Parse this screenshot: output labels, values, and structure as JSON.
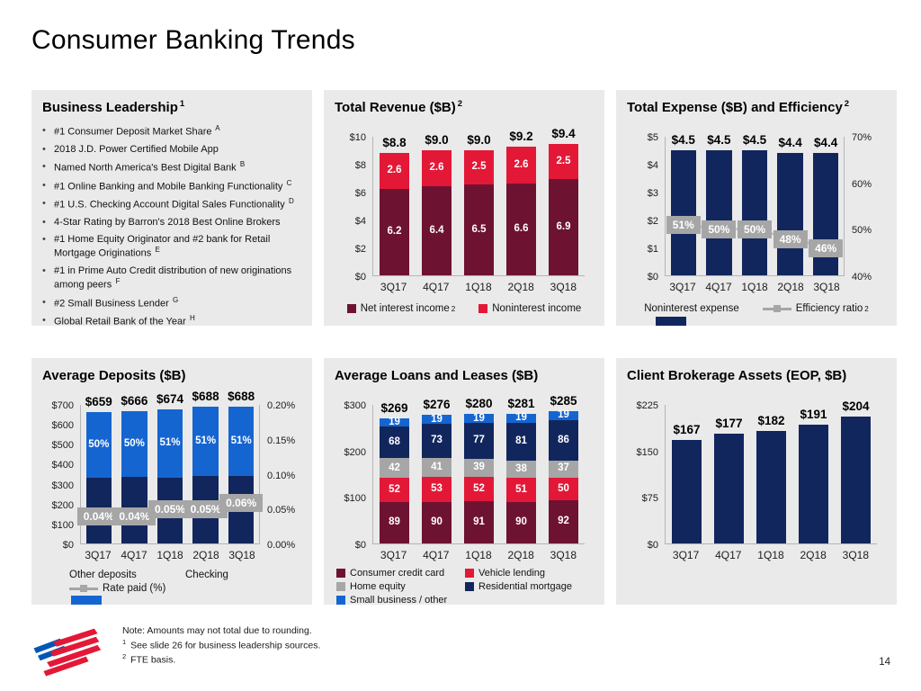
{
  "slide": {
    "title": "Consumer Banking Trends",
    "page_number": "14",
    "footnotes": [
      {
        "sup": "",
        "text": "Note: Amounts may not total due to rounding."
      },
      {
        "sup": "1",
        "text": "See slide 26 for business leadership sources."
      },
      {
        "sup": "2",
        "text": "FTE basis."
      }
    ]
  },
  "colors": {
    "maroon": "#6E1232",
    "red": "#E31837",
    "navy": "#12265E",
    "blue": "#1565D0",
    "gray": "#A6A6A6",
    "line_gray": "#BFBFBF",
    "panel_bg": "#EAEAEA",
    "logo_red": "#E31837",
    "logo_blue": "#0057B8"
  },
  "panels": {
    "business_leadership": {
      "title": "Business Leadership",
      "title_sup": "1",
      "bullets": [
        {
          "text": "#1 Consumer Deposit Market Share",
          "sup": "A"
        },
        {
          "text": "2018 J.D. Power Certified Mobile App",
          "sup": ""
        },
        {
          "text": "Named North America's Best Digital Bank",
          "sup": "B"
        },
        {
          "text": "#1 Online Banking and Mobile Banking Functionality",
          "sup": "C"
        },
        {
          "text": "#1 U.S. Checking Account Digital Sales Functionality",
          "sup": "D"
        },
        {
          "text": "4-Star Rating by Barron's 2018 Best Online Brokers",
          "sup": ""
        },
        {
          "text": "#1 Home Equity Originator and #2 bank for Retail Mortgage Originations",
          "sup": "E"
        },
        {
          "text": "#1 in Prime Auto Credit distribution of new originations among peers",
          "sup": "F"
        },
        {
          "text": "#2 Small Business Lender",
          "sup": "G"
        },
        {
          "text": "Global Retail Bank of the Year",
          "sup": "H"
        }
      ]
    }
  },
  "chart_data": [
    {
      "id": "total-revenue",
      "type": "bar",
      "stacked": true,
      "title": "Total Revenue ($B)",
      "title_sup": "2",
      "categories": [
        "3Q17",
        "4Q17",
        "1Q18",
        "2Q18",
        "3Q18"
      ],
      "series": [
        {
          "name": "Net interest income",
          "color": "maroon",
          "values": [
            6.2,
            6.4,
            6.5,
            6.6,
            6.9
          ],
          "labels": [
            "6.2",
            "6.4",
            "6.5",
            "6.6",
            "6.9"
          ]
        },
        {
          "name": "Noninterest income",
          "color": "red",
          "values": [
            2.6,
            2.6,
            2.5,
            2.6,
            2.5
          ],
          "labels": [
            "2.6",
            "2.6",
            "2.5",
            "2.6",
            "2.5"
          ]
        }
      ],
      "totals": [
        "$8.8",
        "$9.0",
        "$9.0",
        "$9.2",
        "$9.4"
      ],
      "y_axis": {
        "min": 0,
        "max": 10,
        "ticks": [
          {
            "label": "$10",
            "v": 10
          },
          {
            "label": "$8",
            "v": 8
          },
          {
            "label": "$6",
            "v": 6
          },
          {
            "label": "$4",
            "v": 4
          },
          {
            "label": "$2",
            "v": 2
          },
          {
            "label": "$0",
            "v": 0
          }
        ]
      },
      "legend_layout": "row",
      "legend": [
        {
          "type": "square",
          "color": "maroon",
          "label": "Net interest income",
          "sup": "2"
        },
        {
          "type": "square",
          "color": "red",
          "label": "Noninterest income",
          "sup": ""
        }
      ]
    },
    {
      "id": "total-expense-efficiency",
      "type": "bar+line",
      "stacked": false,
      "title": "Total Expense ($B) and Efficiency",
      "title_sup": "2",
      "categories": [
        "3Q17",
        "4Q17",
        "1Q18",
        "2Q18",
        "3Q18"
      ],
      "series": [
        {
          "name": "Noninterest expense",
          "color": "navy",
          "values": [
            4.5,
            4.5,
            4.5,
            4.4,
            4.4
          ],
          "labels": [
            "",
            "",
            "",
            "",
            ""
          ]
        }
      ],
      "totals": [
        "$4.5",
        "$4.5",
        "$4.5",
        "$4.4",
        "$4.4"
      ],
      "y_axis": {
        "min": 0,
        "max": 5,
        "ticks": [
          {
            "label": "$5",
            "v": 5
          },
          {
            "label": "$4",
            "v": 4
          },
          {
            "label": "$3",
            "v": 3
          },
          {
            "label": "$2",
            "v": 2
          },
          {
            "label": "$1",
            "v": 1
          },
          {
            "label": "$0",
            "v": 0
          }
        ]
      },
      "right_axis": {
        "min": 40,
        "max": 70,
        "ticks": [
          {
            "label": "70%",
            "v": 70
          },
          {
            "label": "60%",
            "v": 60
          },
          {
            "label": "50%",
            "v": 50
          },
          {
            "label": "40%",
            "v": 40
          }
        ]
      },
      "line": {
        "name": "Efficiency ratio",
        "axis": "right",
        "values": [
          51,
          50,
          50,
          48,
          46
        ],
        "labels": [
          "51%",
          "50%",
          "50%",
          "48%",
          "46%"
        ]
      },
      "legend_layout": "row",
      "legend": [
        {
          "type": "bar",
          "color": "navy",
          "label": "Noninterest expense",
          "sup": ""
        },
        {
          "type": "line",
          "color": "gray",
          "label": "Efficiency ratio",
          "sup": "2"
        }
      ]
    },
    {
      "id": "average-deposits",
      "type": "bar+line",
      "stacked": true,
      "title": "Average Deposits ($B)",
      "title_sup": "",
      "categories": [
        "3Q17",
        "4Q17",
        "1Q18",
        "2Q18",
        "3Q18"
      ],
      "series": [
        {
          "name": "Other deposits",
          "color": "navy",
          "values": [
            329,
            333,
            330,
            337,
            337
          ],
          "labels": [
            "",
            "",
            "",
            "",
            ""
          ]
        },
        {
          "name": "Checking",
          "color": "blue",
          "values": [
            330,
            333,
            344,
            351,
            351
          ],
          "labels": [
            "50%",
            "50%",
            "51%",
            "51%",
            "51%"
          ]
        }
      ],
      "totals": [
        "$659",
        "$666",
        "$674",
        "$688",
        "$688"
      ],
      "y_axis": {
        "min": 0,
        "max": 700,
        "ticks": [
          {
            "label": "$700",
            "v": 700
          },
          {
            "label": "$600",
            "v": 600
          },
          {
            "label": "$500",
            "v": 500
          },
          {
            "label": "$400",
            "v": 400
          },
          {
            "label": "$300",
            "v": 300
          },
          {
            "label": "$200",
            "v": 200
          },
          {
            "label": "$100",
            "v": 100
          },
          {
            "label": "$0",
            "v": 0
          }
        ]
      },
      "right_axis": {
        "min": 0,
        "max": 0.2,
        "ticks": [
          {
            "label": "0.20%",
            "v": 0.2
          },
          {
            "label": "0.15%",
            "v": 0.15
          },
          {
            "label": "0.10%",
            "v": 0.1
          },
          {
            "label": "0.05%",
            "v": 0.05
          },
          {
            "label": "0.00%",
            "v": 0
          }
        ]
      },
      "line": {
        "name": "Rate paid (%)",
        "axis": "right",
        "values": [
          0.04,
          0.04,
          0.05,
          0.05,
          0.06
        ],
        "labels": [
          "0.04%",
          "0.04%",
          "0.05%",
          "0.05%",
          "0.06%"
        ]
      },
      "legend_layout": "grid2",
      "legend": [
        {
          "type": "bar",
          "color": "navy",
          "label": "Other deposits",
          "sup": ""
        },
        {
          "type": "bar",
          "color": "blue",
          "label": "Checking",
          "sup": ""
        },
        {
          "type": "line",
          "color": "gray",
          "label": "Rate paid (%)",
          "sup": ""
        }
      ]
    },
    {
      "id": "average-loans-leases",
      "type": "bar",
      "stacked": true,
      "title": "Average Loans and Leases ($B)",
      "title_sup": "",
      "categories": [
        "3Q17",
        "4Q17",
        "1Q18",
        "2Q18",
        "3Q18"
      ],
      "series": [
        {
          "name": "Consumer credit card",
          "color": "maroon",
          "values": [
            89,
            90,
            91,
            90,
            92
          ],
          "labels": [
            "89",
            "90",
            "91",
            "90",
            "92"
          ]
        },
        {
          "name": "Vehicle lending",
          "color": "red",
          "values": [
            52,
            53,
            52,
            51,
            50
          ],
          "labels": [
            "52",
            "53",
            "52",
            "51",
            "50"
          ]
        },
        {
          "name": "Home equity",
          "color": "gray",
          "values": [
            42,
            41,
            39,
            38,
            37
          ],
          "labels": [
            "42",
            "41",
            "39",
            "38",
            "37"
          ]
        },
        {
          "name": "Residential mortgage",
          "color": "navy",
          "values": [
            68,
            73,
            77,
            81,
            86
          ],
          "labels": [
            "68",
            "73",
            "77",
            "81",
            "86"
          ]
        },
        {
          "name": "Small business / other",
          "color": "blue",
          "values": [
            19,
            19,
            19,
            19,
            19
          ],
          "labels": [
            "19",
            "19",
            "19",
            "19",
            "19"
          ]
        }
      ],
      "totals": [
        "$269",
        "$276",
        "$280",
        "$281",
        "$285"
      ],
      "y_axis": {
        "min": 0,
        "max": 300,
        "ticks": [
          {
            "label": "$300",
            "v": 300
          },
          {
            "label": "$200",
            "v": 200
          },
          {
            "label": "$100",
            "v": 100
          },
          {
            "label": "$0",
            "v": 0
          }
        ]
      },
      "legend_layout": "grid2",
      "legend": [
        {
          "type": "square",
          "color": "maroon",
          "label": "Consumer credit card",
          "sup": ""
        },
        {
          "type": "square",
          "color": "red",
          "label": "Vehicle lending",
          "sup": ""
        },
        {
          "type": "square",
          "color": "gray",
          "label": "Home equity",
          "sup": ""
        },
        {
          "type": "square",
          "color": "navy",
          "label": "Residential mortgage",
          "sup": ""
        },
        {
          "type": "square",
          "color": "blue",
          "label": "Small business / other",
          "sup": ""
        }
      ]
    },
    {
      "id": "client-brokerage-assets",
      "type": "bar",
      "stacked": false,
      "title": "Client Brokerage Assets (EOP, $B)",
      "title_sup": "",
      "categories": [
        "3Q17",
        "4Q17",
        "1Q18",
        "2Q18",
        "3Q18"
      ],
      "series": [
        {
          "name": "Client brokerage assets",
          "color": "navy",
          "values": [
            167,
            177,
            182,
            191,
            204
          ],
          "labels": [
            "",
            "",
            "",
            "",
            ""
          ]
        }
      ],
      "totals": [
        "$167",
        "$177",
        "$182",
        "$191",
        "$204"
      ],
      "y_axis": {
        "min": 0,
        "max": 225,
        "ticks": [
          {
            "label": "$225",
            "v": 225
          },
          {
            "label": "$150",
            "v": 150
          },
          {
            "label": "$75",
            "v": 75
          },
          {
            "label": "$0",
            "v": 0
          }
        ]
      },
      "legend_layout": "row",
      "legend": []
    }
  ]
}
